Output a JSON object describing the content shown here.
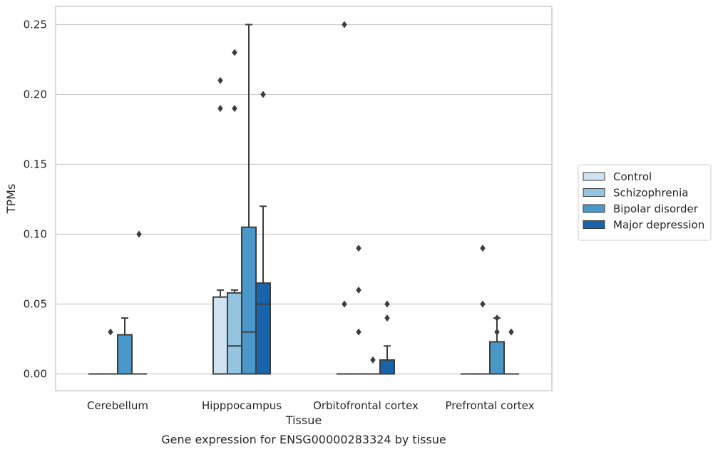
{
  "chart_data": {
    "type": "box",
    "xlabel": "Tissue",
    "ylabel": "TPMs",
    "caption": "Gene expression for ENSG00000283324 by tissue",
    "ylim": [
      -0.012,
      0.263
    ],
    "yticks": [
      0.0,
      0.05,
      0.1,
      0.15,
      0.2,
      0.25
    ],
    "ytick_labels": [
      "0.00",
      "0.05",
      "0.10",
      "0.15",
      "0.20",
      "0.25"
    ],
    "grid": true,
    "legend_position": "right",
    "categories": [
      "Cerebellum",
      "Hipppocampus",
      "Orbitofrontal cortex",
      "Prefrontal cortex"
    ],
    "series": [
      {
        "name": "Control",
        "color": "#d0e1f2",
        "boxes": [
          {
            "q1": 0,
            "median": 0,
            "q3": 0,
            "whisker_low": 0,
            "whisker_high": 0,
            "outliers": []
          },
          {
            "q1": 0,
            "median": 0,
            "q3": 0.055,
            "whisker_low": 0,
            "whisker_high": 0.06,
            "outliers": [
              0.19,
              0.21
            ]
          },
          {
            "q1": 0,
            "median": 0,
            "q3": 0,
            "whisker_low": 0,
            "whisker_high": 0,
            "outliers": [
              0.05,
              0.25
            ]
          },
          {
            "q1": 0,
            "median": 0,
            "q3": 0,
            "whisker_low": 0,
            "whisker_high": 0,
            "outliers": []
          }
        ]
      },
      {
        "name": "Schizophrenia",
        "color": "#94c4df",
        "boxes": [
          {
            "q1": 0,
            "median": 0,
            "q3": 0,
            "whisker_low": 0,
            "whisker_high": 0,
            "outliers": [
              0.03
            ]
          },
          {
            "q1": 0,
            "median": 0.02,
            "q3": 0.058,
            "whisker_low": 0,
            "whisker_high": 0.06,
            "outliers": [
              0.19,
              0.23
            ]
          },
          {
            "q1": 0,
            "median": 0,
            "q3": 0,
            "whisker_low": 0,
            "whisker_high": 0,
            "outliers": [
              0.03,
              0.06,
              0.09
            ]
          },
          {
            "q1": 0,
            "median": 0,
            "q3": 0,
            "whisker_low": 0,
            "whisker_high": 0,
            "outliers": [
              0.05,
              0.09
            ]
          }
        ]
      },
      {
        "name": "Bipolar disorder",
        "color": "#4a98c9",
        "boxes": [
          {
            "q1": 0,
            "median": 0,
            "q3": 0.028,
            "whisker_low": 0,
            "whisker_high": 0.04,
            "outliers": []
          },
          {
            "q1": 0,
            "median": 0.03,
            "q3": 0.105,
            "whisker_low": 0,
            "whisker_high": 0.25,
            "outliers": []
          },
          {
            "q1": 0,
            "median": 0,
            "q3": 0,
            "whisker_low": 0,
            "whisker_high": 0,
            "outliers": [
              0.01
            ]
          },
          {
            "q1": 0,
            "median": 0,
            "q3": 0.023,
            "whisker_low": 0,
            "whisker_high": 0.04,
            "outliers": [
              0.03,
              0.04
            ]
          }
        ]
      },
      {
        "name": "Major depression",
        "color": "#1764ab",
        "boxes": [
          {
            "q1": 0,
            "median": 0,
            "q3": 0,
            "whisker_low": 0,
            "whisker_high": 0,
            "outliers": [
              0.1
            ]
          },
          {
            "q1": 0,
            "median": 0.05,
            "q3": 0.065,
            "whisker_low": 0,
            "whisker_high": 0.12,
            "outliers": [
              0.2
            ]
          },
          {
            "q1": 0,
            "median": 0,
            "q3": 0.01,
            "whisker_low": 0,
            "whisker_high": 0.02,
            "outliers": [
              0.04,
              0.05
            ]
          },
          {
            "q1": 0,
            "median": 0,
            "q3": 0,
            "whisker_low": 0,
            "whisker_high": 0,
            "outliers": [
              0.03
            ]
          }
        ]
      }
    ]
  }
}
